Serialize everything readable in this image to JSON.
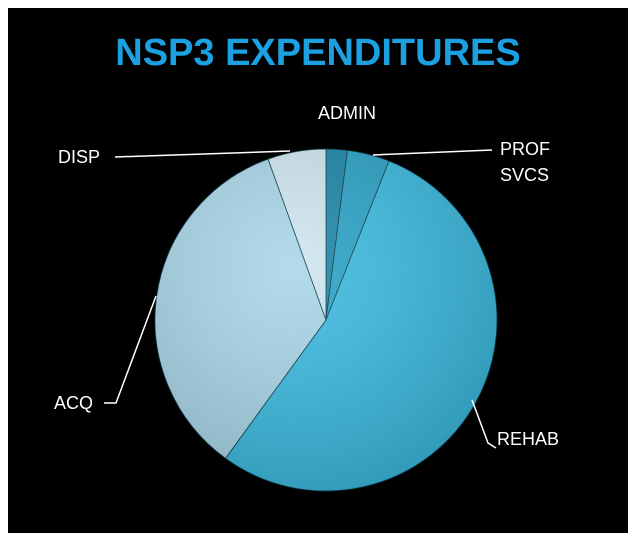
{
  "chart_data": {
    "type": "pie",
    "title": "NSP3 EXPENDITURES",
    "categories": [
      "ADMIN",
      "PROF SVCS",
      "REHAB",
      "ACQ",
      "DISP"
    ],
    "values": [
      2,
      4,
      54,
      34.5,
      5.5
    ],
    "colors": [
      "#1d86a8",
      "#2aa3c6",
      "#3bbbe0",
      "#a9d6e8",
      "#cfe6f0"
    ]
  }
}
